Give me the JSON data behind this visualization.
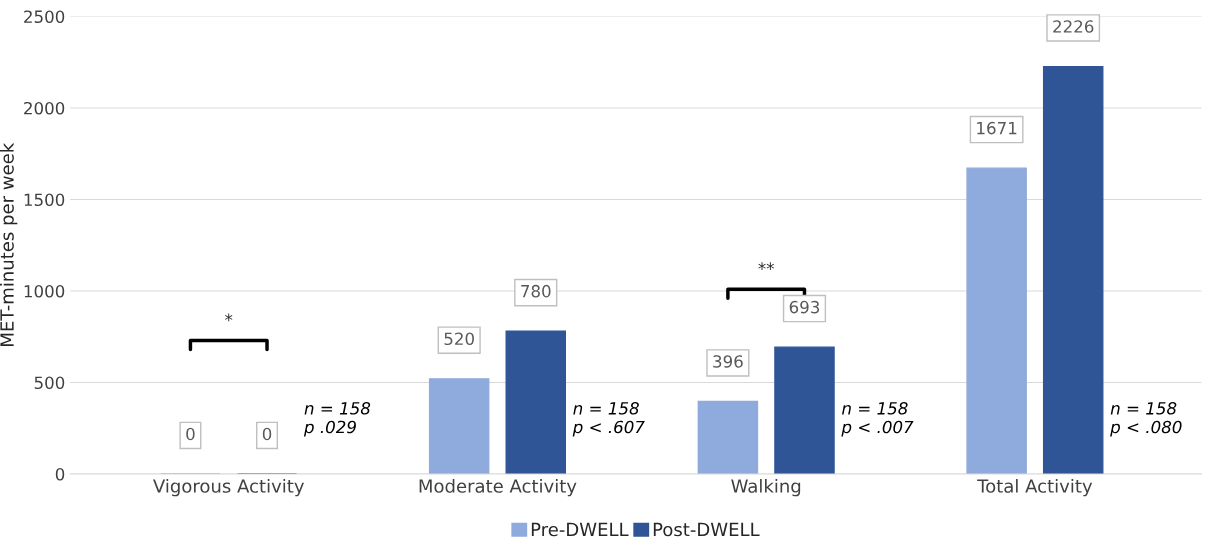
{
  "chart_data": {
    "type": "bar",
    "ylabel": "MET-minutes per week",
    "categories": [
      "Vigorous Activity",
      "Moderate Activity",
      "Walking",
      "Total Activity"
    ],
    "series": [
      {
        "name": "Pre-DWELL",
        "color": "#8faadc",
        "values": [
          0,
          520,
          396,
          1671
        ]
      },
      {
        "name": "Post-DWELL",
        "color": "#2f5597",
        "values": [
          0,
          780,
          693,
          2226
        ]
      }
    ],
    "ylim": [
      0,
      2500
    ],
    "yticks": [
      0,
      500,
      1000,
      1500,
      2000,
      2500
    ],
    "grid": "y",
    "legend": "bottom",
    "data_labels": true,
    "annotations": [
      "*",
      "n = 158\np .029",
      "n = 158\np < .607",
      "**",
      "n = 158\np < .007",
      "n = 158\np < .080"
    ]
  }
}
